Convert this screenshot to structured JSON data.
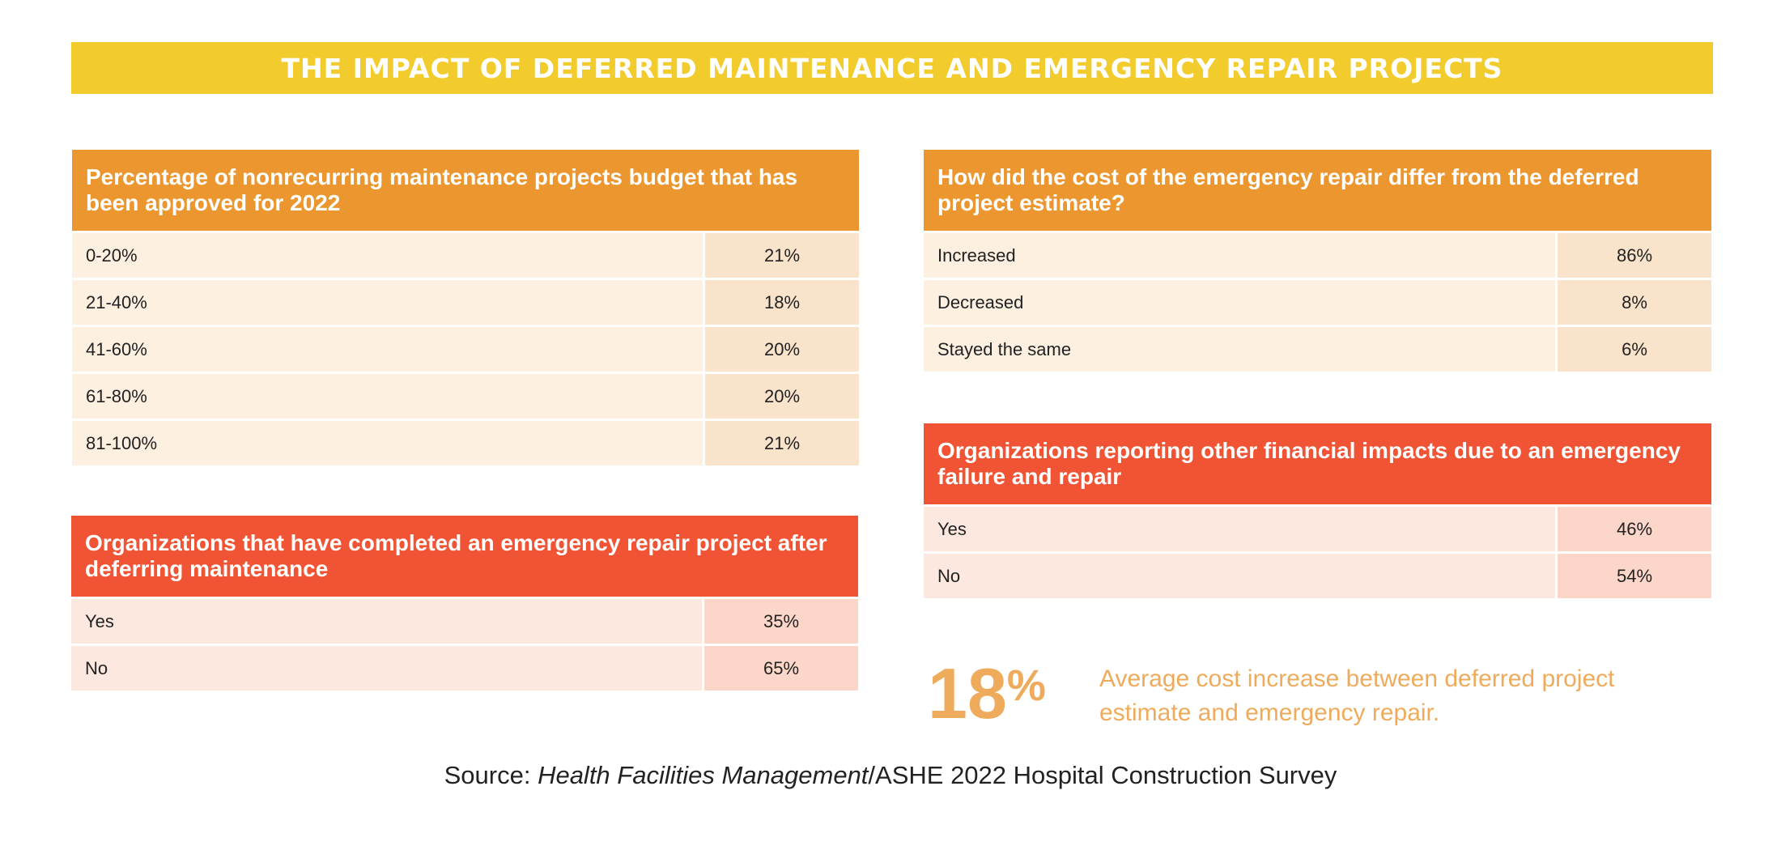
{
  "banner": {
    "title": "THE IMPACT OF DEFERRED MAINTENANCE AND EMERGENCY REPAIR PROJECTS"
  },
  "colors": {
    "yellow": "#f2cb2c",
    "orange": "#eb962e",
    "red": "#f05434",
    "accent_text": "#efab5c"
  },
  "tables": [
    {
      "title": "Percentage of nonrecurring maintenance projects budget that has been approved for 2022",
      "rows": [
        {
          "label": "0-20%",
          "value": "21%"
        },
        {
          "label": "21-40%",
          "value": "18%"
        },
        {
          "label": "41-60%",
          "value": "20%"
        },
        {
          "label": "61-80%",
          "value": "20%"
        },
        {
          "label": "81-100%",
          "value": "21%"
        }
      ]
    },
    {
      "title": "Organizations that have completed an emergency repair project after deferring maintenance",
      "rows": [
        {
          "label": "Yes",
          "value": "35%"
        },
        {
          "label": "No",
          "value": "65%"
        }
      ]
    },
    {
      "title": "How did the cost of the emergency repair differ from the deferred project estimate?",
      "rows": [
        {
          "label": "Increased",
          "value": "86%"
        },
        {
          "label": "Decreased",
          "value": "8%"
        },
        {
          "label": "Stayed the same",
          "value": "6%"
        }
      ]
    },
    {
      "title": "Organizations reporting other financial impacts due to an emergency failure and repair",
      "rows": [
        {
          "label": "Yes",
          "value": "46%"
        },
        {
          "label": "No",
          "value": "54%"
        }
      ]
    }
  ],
  "stat": {
    "number": "18",
    "percent_sign": "%",
    "description": "Average cost increase between deferred project estimate and emergency repair."
  },
  "source": {
    "prefix": "Source: ",
    "publication": "Health Facilities Management",
    "suffix": "/ASHE 2022 Hospital Construction Survey"
  }
}
